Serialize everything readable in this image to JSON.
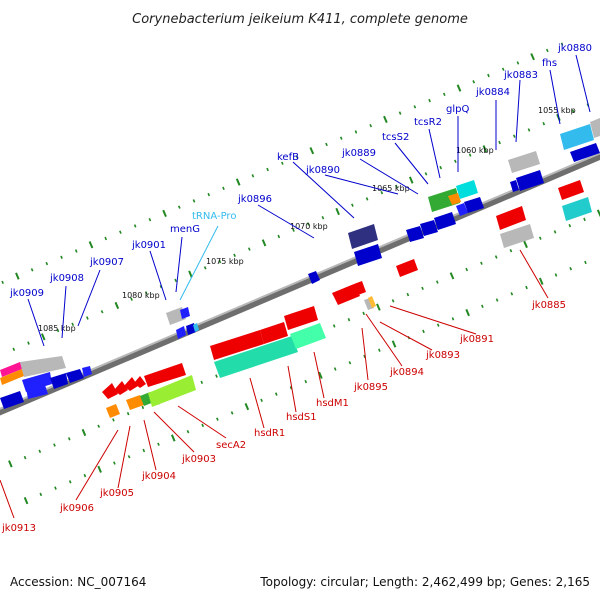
{
  "title": "Corynebacterium jeikeium K411, complete genome",
  "footer": {
    "accession": "Accession: NC_007164",
    "stats": "Topology: circular; Length: 2,462,499 bp; Genes: 2,165"
  },
  "colors": {
    "forward_label": "#0000cc",
    "reverse_label": "#cc0000",
    "rna_label": "#33bbee",
    "backbone": "#808080",
    "tick": "#228822"
  },
  "kbp_ticks": [
    "1085 kbp",
    "1080 kbp",
    "1075 kbp",
    "1070 kbp",
    "1065 kbp",
    "1060 kbp",
    "1055 kbp"
  ],
  "forward_labels": [
    "jk0909",
    "jk0908",
    "jk0907",
    "jk0901",
    "menG",
    "tRNA-Pro",
    "jk0896",
    "kefB",
    "jk0890",
    "jk0889",
    "tcsS2",
    "tcsR2",
    "glpQ",
    "jk0884",
    "jk0883",
    "fhs",
    "jk0880"
  ],
  "reverse_labels": [
    "jk0913",
    "jk0906",
    "jk0905",
    "jk0904",
    "jk0903",
    "secA2",
    "hsdR1",
    "hsdS1",
    "hsdM1",
    "jk0895",
    "jk0894",
    "jk0893",
    "jk0891",
    "jk0885"
  ]
}
